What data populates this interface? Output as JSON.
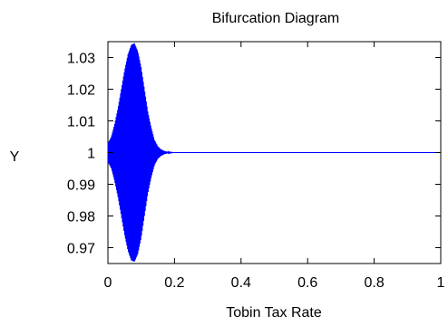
{
  "chart_data": {
    "type": "line",
    "title": "Bifurcation Diagram",
    "xlabel": "Tobin Tax Rate",
    "ylabel": "Y",
    "xlim": [
      0,
      1
    ],
    "ylim": [
      0.965,
      1.035
    ],
    "xticks": [
      "0",
      "0.2",
      "0.4",
      "0.6",
      "0.8",
      "1"
    ],
    "yticks": [
      "0.97",
      "0.98",
      "0.99",
      "1",
      "1.01",
      "1.02",
      "1.03"
    ],
    "grid": false,
    "series": [
      {
        "color": "#0000ff",
        "envelope": {
          "x": [
            0,
            0.01,
            0.02,
            0.03,
            0.04,
            0.05,
            0.06,
            0.07,
            0.08,
            0.09,
            0.1,
            0.11,
            0.12,
            0.13,
            0.14,
            0.15,
            0.16,
            0.17,
            0.18,
            0.19,
            0.2,
            0.25,
            0.5,
            1.0
          ],
          "y_max": [
            1.003,
            1.005,
            1.009,
            1.014,
            1.02,
            1.026,
            1.031,
            1.034,
            1.0345,
            1.032,
            1.027,
            1.02,
            1.013,
            1.008,
            1.004,
            1.002,
            1.001,
            1.0005,
            1.0002,
            1.0001,
            1.0,
            1.0,
            1.0,
            1.0
          ],
          "y_min": [
            0.997,
            0.995,
            0.991,
            0.986,
            0.98,
            0.974,
            0.969,
            0.966,
            0.9655,
            0.968,
            0.973,
            0.98,
            0.987,
            0.992,
            0.996,
            0.998,
            0.999,
            0.9995,
            0.9998,
            0.9999,
            1.0,
            1.0,
            1.0,
            1.0
          ]
        }
      }
    ]
  }
}
